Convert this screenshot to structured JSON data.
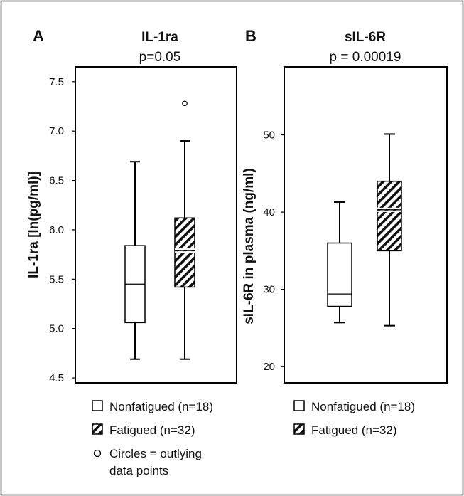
{
  "chart_data": [
    {
      "type": "box",
      "panel_label": "A",
      "title": "IL-1ra",
      "subtitle": "p=0.05",
      "ylabel": "IL-1ra [ln(pg/ml)]",
      "ylim": [
        4.45,
        7.65
      ],
      "yticks": [
        "4.5",
        "5.0",
        "5.5",
        "6.0",
        "6.5",
        "7.0",
        "7.5"
      ],
      "series": [
        {
          "name": "Nonfatigued (n=18)",
          "pattern": "plain",
          "min": 4.69,
          "q1": 5.06,
          "median": 5.45,
          "q3": 5.84,
          "max": 6.69,
          "outliers": []
        },
        {
          "name": "Fatigued (n=32)",
          "pattern": "hatched",
          "min": 4.69,
          "q1": 5.42,
          "median": 5.79,
          "q3": 6.12,
          "max": 6.9,
          "outliers": [
            7.28
          ]
        }
      ],
      "legend": [
        {
          "symbol": "open-square",
          "label": "Nonfatigued (n=18)"
        },
        {
          "symbol": "hatched-square",
          "label": "Fatigued (n=32)"
        },
        {
          "symbol": "open-circle",
          "label": "Circles = outlying",
          "label2": "data points"
        }
      ]
    },
    {
      "type": "box",
      "panel_label": "B",
      "title": "sIL-6R",
      "subtitle": "p = 0.00019",
      "ylabel": "sIL-6R in plasma (ng/ml)",
      "ylim": [
        17.9,
        58.8
      ],
      "yticks": [
        "20",
        "30",
        "40",
        "50"
      ],
      "series": [
        {
          "name": "Nonfatigued (n=18)",
          "pattern": "plain",
          "min": 25.7,
          "q1": 27.8,
          "median": 29.4,
          "q3": 36.0,
          "max": 41.3,
          "outliers": []
        },
        {
          "name": "Fatigued (n=32)",
          "pattern": "hatched",
          "min": 25.3,
          "q1": 35.0,
          "median": 40.3,
          "q3": 44.0,
          "max": 50.1,
          "outliers": []
        }
      ],
      "legend": [
        {
          "symbol": "open-square",
          "label": "Nonfatigued (n=18)"
        },
        {
          "symbol": "hatched-square",
          "label": "Fatigued (n=32)"
        }
      ]
    }
  ]
}
